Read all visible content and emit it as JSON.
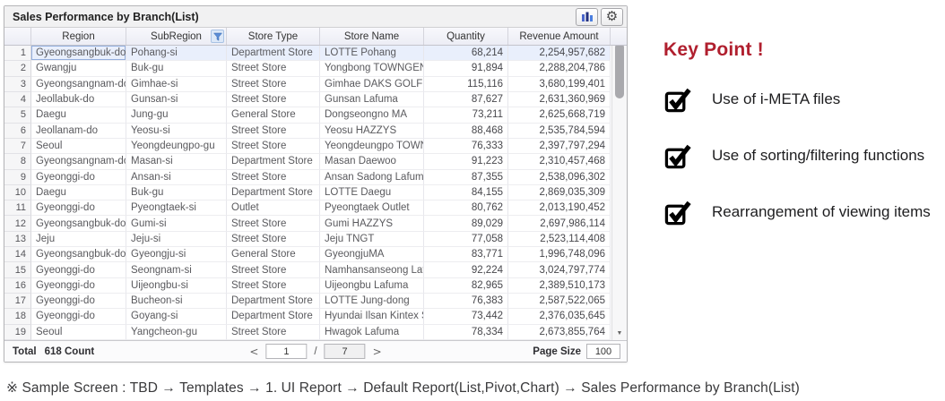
{
  "panel": {
    "title": "Sales Performance by Branch(List)",
    "toolbar": {
      "chart_button": "bar-chart",
      "settings_button": "gear"
    }
  },
  "table": {
    "columns": [
      "Region",
      "SubRegion",
      "Store Type",
      "Store Name",
      "Quantity",
      "Revenue Amount"
    ],
    "filtered_column": "SubRegion",
    "rows": [
      {
        "num": "1",
        "region": "Gyeongsangbuk-do",
        "subregion": "Pohang-si",
        "store_type": "Department Store",
        "store_name": "LOTTE Pohang",
        "quantity": "68,214",
        "revenue": "2,254,957,682"
      },
      {
        "num": "2",
        "region": "Gwangju",
        "subregion": "Buk-gu",
        "store_type": "Street Store",
        "store_name": "Yongbong TOWNGENT",
        "quantity": "91,894",
        "revenue": "2,288,204,786"
      },
      {
        "num": "3",
        "region": "Gyeongsangnam-do",
        "subregion": "Gimhae-si",
        "store_type": "Street Store",
        "store_name": "Gimhae DAKS GOLF",
        "quantity": "115,116",
        "revenue": "3,680,199,401"
      },
      {
        "num": "4",
        "region": "Jeollabuk-do",
        "subregion": "Gunsan-si",
        "store_type": "Street Store",
        "store_name": "Gunsan Lafuma",
        "quantity": "87,627",
        "revenue": "2,631,360,969"
      },
      {
        "num": "5",
        "region": "Daegu",
        "subregion": "Jung-gu",
        "store_type": "General Store",
        "store_name": "Dongseongno MA",
        "quantity": "73,211",
        "revenue": "2,625,668,719"
      },
      {
        "num": "6",
        "region": "Jeollanam-do",
        "subregion": "Yeosu-si",
        "store_type": "Street Store",
        "store_name": "Yeosu HAZZYS",
        "quantity": "88,468",
        "revenue": "2,535,784,594"
      },
      {
        "num": "7",
        "region": "Seoul",
        "subregion": "Yeongdeungpo-gu",
        "store_type": "Street Store",
        "store_name": "Yeongdeungpo TOWN...",
        "quantity": "76,333",
        "revenue": "2,397,797,294"
      },
      {
        "num": "8",
        "region": "Gyeongsangnam-do",
        "subregion": "Masan-si",
        "store_type": "Department Store",
        "store_name": "Masan Daewoo",
        "quantity": "91,223",
        "revenue": "2,310,457,468"
      },
      {
        "num": "9",
        "region": "Gyeonggi-do",
        "subregion": "Ansan-si",
        "store_type": "Street Store",
        "store_name": "Ansan Sadong Lafuma",
        "quantity": "87,355",
        "revenue": "2,538,096,302"
      },
      {
        "num": "10",
        "region": "Daegu",
        "subregion": "Buk-gu",
        "store_type": "Department Store",
        "store_name": "LOTTE Daegu",
        "quantity": "84,155",
        "revenue": "2,869,035,309"
      },
      {
        "num": "11",
        "region": "Gyeonggi-do",
        "subregion": "Pyeongtaek-si",
        "store_type": "Outlet",
        "store_name": "Pyeongtaek Outlet",
        "quantity": "80,762",
        "revenue": "2,013,190,452"
      },
      {
        "num": "12",
        "region": "Gyeongsangbuk-do",
        "subregion": "Gumi-si",
        "store_type": "Street Store",
        "store_name": "Gumi HAZZYS",
        "quantity": "89,029",
        "revenue": "2,697,986,114"
      },
      {
        "num": "13",
        "region": "Jeju",
        "subregion": "Jeju-si",
        "store_type": "Street Store",
        "store_name": "Jeju TNGT",
        "quantity": "77,058",
        "revenue": "2,523,114,408"
      },
      {
        "num": "14",
        "region": "Gyeongsangbuk-do",
        "subregion": "Gyeongju-si",
        "store_type": "General Store",
        "store_name": "GyeongjuMA",
        "quantity": "83,771",
        "revenue": "1,996,748,096"
      },
      {
        "num": "15",
        "region": "Gyeonggi-do",
        "subregion": "Seongnam-si",
        "store_type": "Street Store",
        "store_name": "Namhansanseong Lafu...",
        "quantity": "92,224",
        "revenue": "3,024,797,774"
      },
      {
        "num": "16",
        "region": "Gyeonggi-do",
        "subregion": "Uijeongbu-si",
        "store_type": "Street Store",
        "store_name": "Uijeongbu Lafuma",
        "quantity": "82,965",
        "revenue": "2,389,510,173"
      },
      {
        "num": "17",
        "region": "Gyeonggi-do",
        "subregion": "Bucheon-si",
        "store_type": "Department Store",
        "store_name": "LOTTE Jung-dong",
        "quantity": "76,383",
        "revenue": "2,587,522,065"
      },
      {
        "num": "18",
        "region": "Gyeonggi-do",
        "subregion": "Goyang-si",
        "store_type": "Department Store",
        "store_name": "Hyundai Ilsan Kintex St...",
        "quantity": "73,442",
        "revenue": "2,376,035,645"
      },
      {
        "num": "19",
        "region": "Seoul",
        "subregion": "Yangcheon-gu",
        "store_type": "Street Store",
        "store_name": "Hwagok Lafuma",
        "quantity": "78,334",
        "revenue": "2,673,855,764"
      }
    ]
  },
  "footer": {
    "total_label": "Total",
    "total_value": "618  Count",
    "prev_arrow": "<",
    "next_arrow": ">",
    "current_page": "1",
    "page_separator": "/",
    "total_pages": "7",
    "page_size_label": "Page Size",
    "page_size_value": "100"
  },
  "scrollbar": {
    "up": "▲",
    "down": "▼"
  },
  "key_points": {
    "title": "Key Point !",
    "items": [
      {
        "label": "Use of i-META files"
      },
      {
        "label": "Use of sorting/filtering functions"
      },
      {
        "label": "Rearrangement of viewing items"
      }
    ]
  },
  "caption": "※ Sample Screen : TBD → Templates → 1. UI Report → Default Report(List,Pivot,Chart) → Sales Performance by Branch(List)",
  "colors": {
    "accent_red": "#b01f2e",
    "selected_row": "#e9effc",
    "filter_icon_blue": "#4a7ec0",
    "chart_icon_blue": "#3a55c0"
  }
}
